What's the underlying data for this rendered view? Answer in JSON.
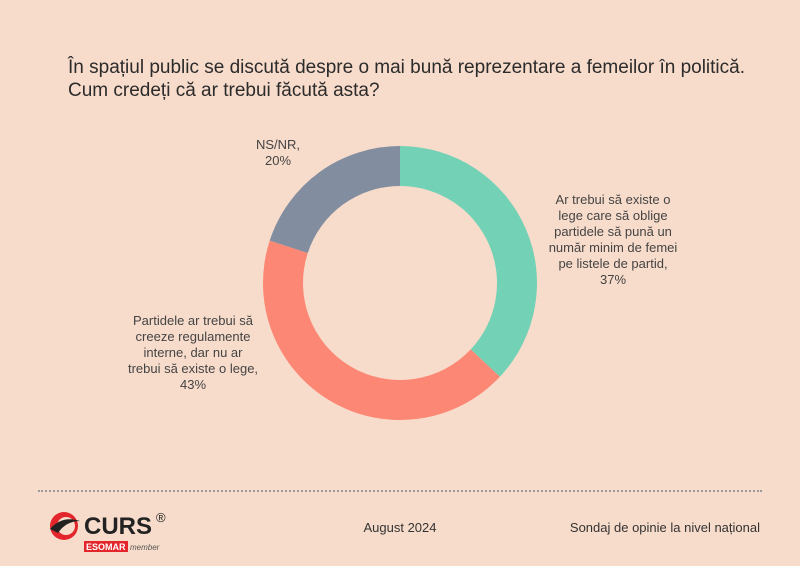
{
  "title": "În spațiul public se discută despre o mai bună reprezentare a femeilor în politică. Cum credeți că ar trebui făcută asta?",
  "chart_data": {
    "type": "pie",
    "donut": true,
    "slices": [
      {
        "label_lines": [
          "Ar trebui să existe o",
          "lege care să oblige",
          "partidele să pună un",
          "număr minim de femei",
          "pe listele de partid,",
          "37%"
        ],
        "value": 37,
        "color": "#73d1b5"
      },
      {
        "label_lines": [
          "Partidele ar trebui să",
          "creeze regulamente",
          "interne, dar nu ar",
          "trebui să existe o lege,",
          "43%"
        ],
        "value": 43,
        "color": "#fc8774"
      },
      {
        "label_lines": [
          "NS/NR,",
          "20%"
        ],
        "value": 20,
        "color": "#828d9f"
      }
    ]
  },
  "footer": {
    "date": "August 2024",
    "survey": "Sondaj de opinie la nivel național"
  },
  "logo": {
    "brand": "CURS",
    "registered": "®",
    "sub_a": "ESOMAR",
    "sub_b": "member",
    "accent_color": "#e3262b"
  }
}
